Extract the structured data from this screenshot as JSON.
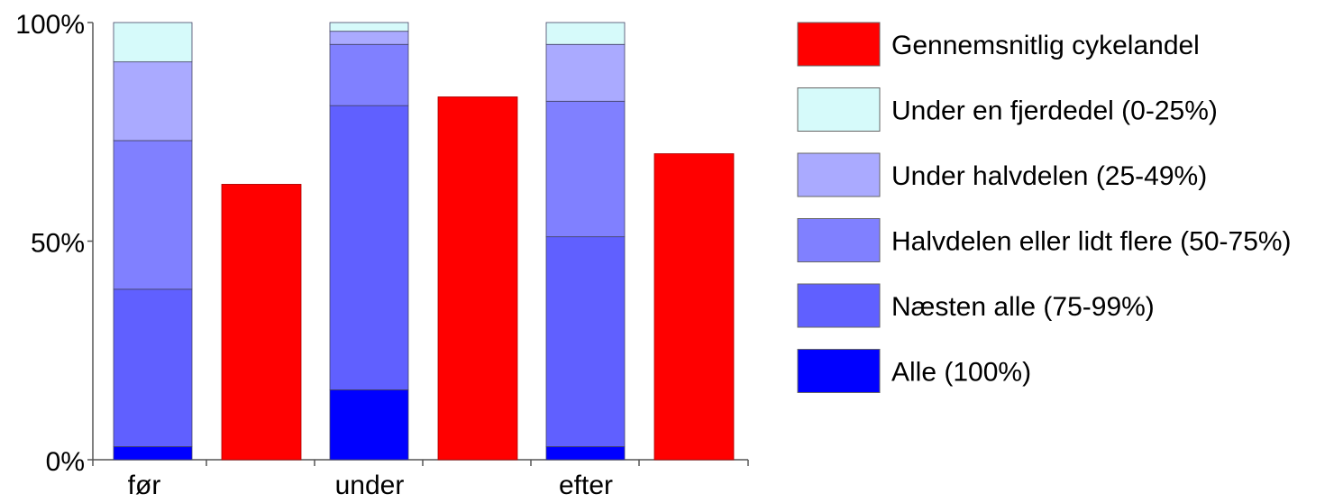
{
  "chart_data": {
    "type": "bar",
    "categories": [
      "før",
      "under",
      "efter"
    ],
    "ylim": [
      0,
      100
    ],
    "y_ticks": [
      {
        "value": 0,
        "label": "0%"
      },
      {
        "value": 50,
        "label": "50%"
      },
      {
        "value": 100,
        "label": "100%"
      }
    ],
    "stacked_series": [
      {
        "name": "Alle (100%)",
        "color": "#0000ff",
        "values": [
          3,
          16,
          3
        ]
      },
      {
        "name": "Næsten alle (75-99%)",
        "color": "#6060ff",
        "values": [
          36,
          65,
          48
        ]
      },
      {
        "name": "Halvdelen eller lidt flere (50-75%)",
        "color": "#8080ff",
        "values": [
          34,
          14,
          31
        ]
      },
      {
        "name": "Under halvdelen (25-49%)",
        "color": "#aaaaff",
        "values": [
          18,
          3,
          13
        ]
      },
      {
        "name": "Under en fjerdedel (0-25%)",
        "color": "#d6fafa",
        "values": [
          9,
          2,
          5
        ]
      }
    ],
    "average_series": {
      "name": "Gennemsnitlig cykelandel",
      "color": "#ff0000",
      "values": [
        63,
        83,
        70
      ]
    },
    "legend": {
      "placement": "right",
      "order": [
        "Gennemsnitlig cykelandel",
        "Under en fjerdedel (0-25%)",
        "Under halvdelen (25-49%)",
        "Halvdelen eller lidt flere (50-75%)",
        "Næsten alle (75-99%)",
        "Alle (100%)"
      ]
    },
    "grid": false,
    "title": "",
    "xlabel": "",
    "ylabel": ""
  }
}
